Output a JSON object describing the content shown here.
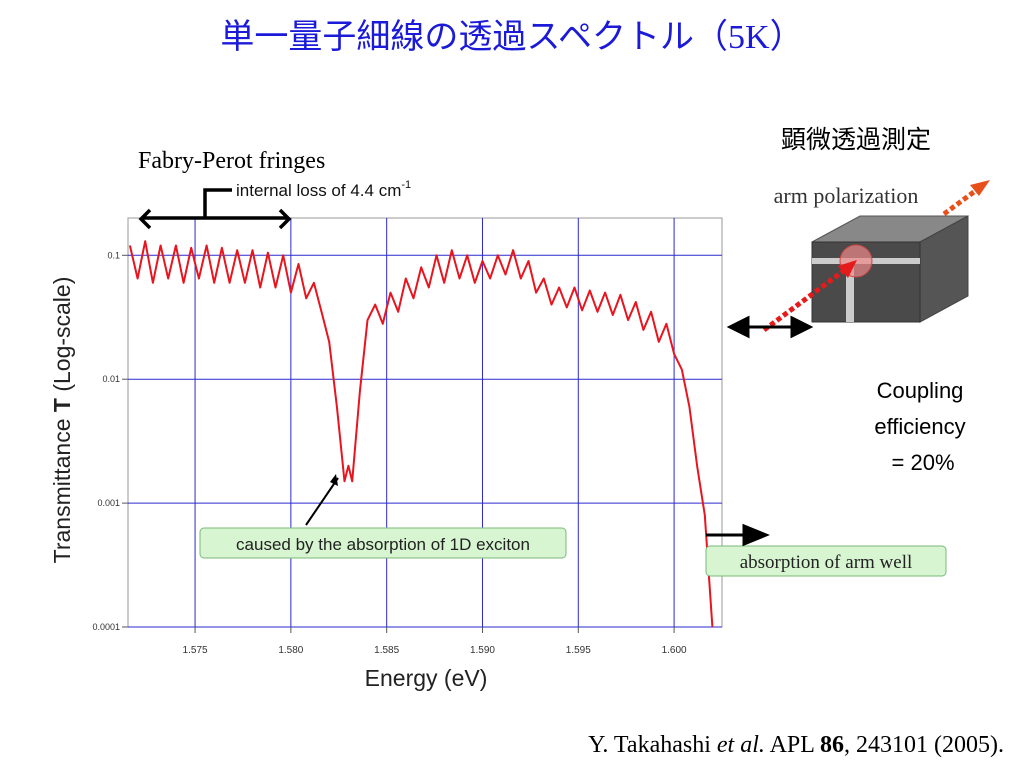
{
  "chart_data": {
    "type": "line",
    "title": "単一量子細線の透過スペクトル（5K）",
    "xlabel": "Energy (eV)",
    "ylabel": [
      "Transmittance ",
      "T",
      " (Log-scale)"
    ],
    "log_y": true,
    "grid": true,
    "color": "#e8141e",
    "xlim": [
      1.5715,
      1.6025
    ],
    "xticks": [
      {
        "value": 1.575,
        "label": "1.575"
      },
      {
        "value": 1.58,
        "label": "1.580"
      },
      {
        "value": 1.585,
        "label": "1.585"
      },
      {
        "value": 1.59,
        "label": "1.590"
      },
      {
        "value": 1.595,
        "label": "1.595"
      },
      {
        "value": 1.6,
        "label": "1.600"
      }
    ],
    "ylim": [
      0.0001,
      0.2
    ],
    "yticks": [
      0.0001,
      0.001,
      0.01,
      0.1
    ],
    "x": [
      1.5716,
      1.572,
      1.5724,
      1.5728,
      1.5732,
      1.5736,
      1.574,
      1.5744,
      1.5748,
      1.5752,
      1.5756,
      1.576,
      1.5764,
      1.5768,
      1.5772,
      1.5776,
      1.578,
      1.5784,
      1.5788,
      1.5792,
      1.5796,
      1.58,
      1.5804,
      1.5808,
      1.5812,
      1.5816,
      1.582,
      1.5824,
      1.5828,
      1.583,
      1.5832,
      1.5836,
      1.584,
      1.5844,
      1.5848,
      1.5852,
      1.5856,
      1.586,
      1.5864,
      1.5868,
      1.5872,
      1.5876,
      1.588,
      1.5884,
      1.5888,
      1.5892,
      1.5896,
      1.59,
      1.5904,
      1.5908,
      1.5912,
      1.5916,
      1.592,
      1.5924,
      1.5928,
      1.5932,
      1.5936,
      1.594,
      1.5944,
      1.5948,
      1.5952,
      1.5956,
      1.596,
      1.5964,
      1.5968,
      1.5972,
      1.5976,
      1.598,
      1.5984,
      1.5988,
      1.5992,
      1.5996,
      1.6,
      1.6004,
      1.6008,
      1.6012,
      1.6016,
      1.602
    ],
    "values": [
      0.12,
      0.065,
      0.13,
      0.06,
      0.12,
      0.065,
      0.12,
      0.06,
      0.115,
      0.065,
      0.12,
      0.06,
      0.115,
      0.06,
      0.11,
      0.06,
      0.11,
      0.055,
      0.105,
      0.055,
      0.1,
      0.05,
      0.085,
      0.045,
      0.06,
      0.035,
      0.02,
      0.006,
      0.0015,
      0.002,
      0.0015,
      0.008,
      0.03,
      0.04,
      0.028,
      0.05,
      0.035,
      0.065,
      0.045,
      0.08,
      0.055,
      0.1,
      0.06,
      0.11,
      0.065,
      0.1,
      0.06,
      0.09,
      0.065,
      0.1,
      0.07,
      0.11,
      0.065,
      0.09,
      0.05,
      0.065,
      0.04,
      0.055,
      0.038,
      0.055,
      0.036,
      0.052,
      0.035,
      0.05,
      0.033,
      0.048,
      0.03,
      0.042,
      0.025,
      0.035,
      0.02,
      0.028,
      0.016,
      0.012,
      0.006,
      0.002,
      0.0008,
      0.0001
    ],
    "annotations": {
      "fringes": "Fabry-Perot fringes",
      "loss": [
        "internal loss of 4.4 cm",
        "-1"
      ],
      "exciton": "caused by the absorption of 1D exciton",
      "arm_well": "absorption of arm well",
      "measurement": "顕微透過測定",
      "polarization": "arm polarization",
      "coupling": [
        "Coupling",
        "efficiency",
        " = 20%"
      ],
      "citation": [
        "Y. Takahashi ",
        "et al.",
        " APL ",
        "86",
        ", 243101 (2005)."
      ]
    }
  }
}
